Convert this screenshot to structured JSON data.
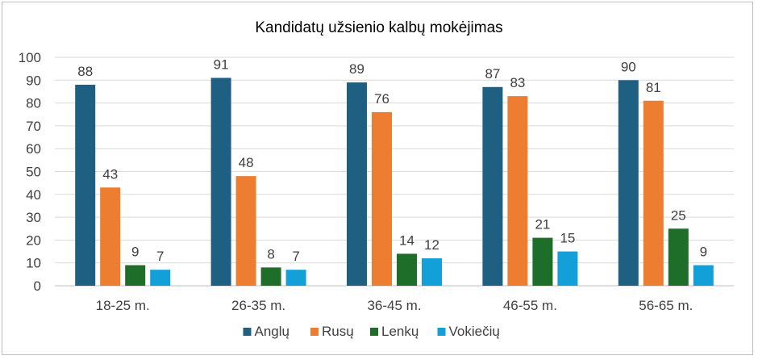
{
  "chart_data": {
    "type": "bar",
    "title": "Kandidatų užsienio kalbų mokėjimas",
    "xlabel": "",
    "ylabel": "",
    "ylim": [
      0,
      100
    ],
    "yticks": [
      0,
      10,
      20,
      30,
      40,
      50,
      60,
      70,
      80,
      90,
      100
    ],
    "grid": true,
    "legend_position": "bottom",
    "categories": [
      "18-25 m.",
      "26-35 m.",
      "36-45 m.",
      "46-55 m.",
      "56-65 m."
    ],
    "series": [
      {
        "name": "Anglų",
        "color": "#1f5f82",
        "values": [
          88,
          91,
          89,
          87,
          90
        ]
      },
      {
        "name": "Rusų",
        "color": "#ed7d31",
        "values": [
          43,
          48,
          76,
          83,
          81
        ]
      },
      {
        "name": "Lenkų",
        "color": "#1e6e2a",
        "values": [
          9,
          8,
          14,
          21,
          25
        ]
      },
      {
        "name": "Vokiečių",
        "color": "#139fd8",
        "values": [
          7,
          7,
          12,
          15,
          9
        ]
      }
    ]
  }
}
